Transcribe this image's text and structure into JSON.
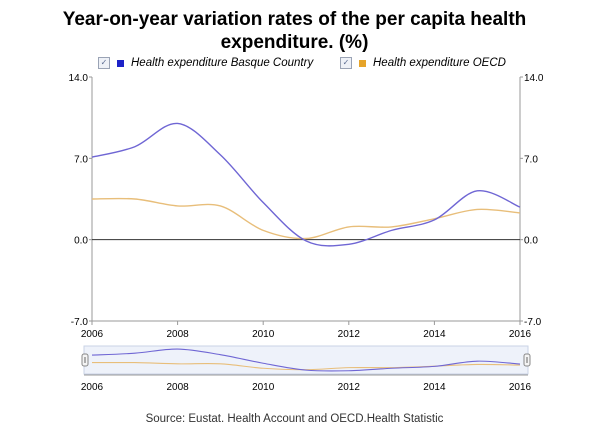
{
  "title_lines": [
    "Year-on-year variation rates of the per capita health",
    "expenditure. (%)"
  ],
  "source": "Source: Eustat. Health Account and OECD.Health Statistic",
  "legend": {
    "check_glyph": "✓",
    "items": [
      {
        "label": "Health expenditure Basque Country",
        "color": "#1d22c8"
      },
      {
        "label": "Health expenditure OECD",
        "color": "#e6a42a"
      }
    ]
  },
  "chart_data": {
    "type": "line",
    "title": "Year-on-year variation rates of the per capita health expenditure. (%)",
    "xlabel": "",
    "ylabel": "",
    "xlim": [
      2006,
      2016
    ],
    "ylim": [
      -7.0,
      14.0
    ],
    "x_ticks": [
      "2006",
      "2008",
      "2010",
      "2012",
      "2014",
      "2016"
    ],
    "y_ticks_left": [
      "14.0",
      "7.0",
      "0.0",
      "-7.0"
    ],
    "y_ticks_right": [
      "14.0",
      "7.0",
      "0.0",
      "-7.0"
    ],
    "navigator_ticks": [
      "2006",
      "2008",
      "2010",
      "2012",
      "2014",
      "2016"
    ],
    "grid": false,
    "zero_line": true,
    "legend_position": "top",
    "x": [
      2006,
      2007,
      2008,
      2009,
      2010,
      2011,
      2012,
      2013,
      2014,
      2015,
      2016
    ],
    "series": [
      {
        "name": "Health expenditure Basque Country",
        "color": "#6f66d4",
        "values": [
          7.1,
          8.0,
          10.0,
          7.3,
          3.2,
          -0.1,
          -0.4,
          0.8,
          1.7,
          4.2,
          2.8
        ]
      },
      {
        "name": "Health expenditure OECD",
        "color": "#e8be7a",
        "values": [
          3.5,
          3.5,
          2.9,
          2.9,
          0.8,
          0.1,
          1.1,
          1.1,
          1.8,
          2.6,
          2.3
        ]
      }
    ]
  }
}
